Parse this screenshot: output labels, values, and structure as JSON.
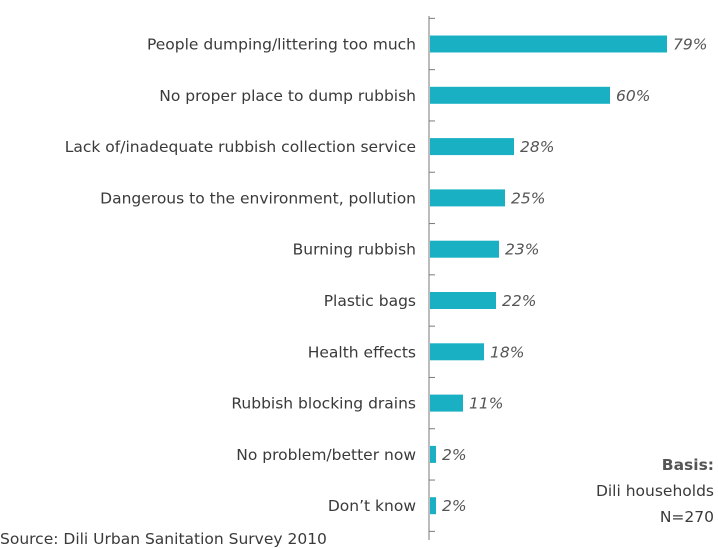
{
  "chart_data": {
    "type": "bar",
    "orientation": "horizontal",
    "categories": [
      "People dumping/littering too much",
      "No proper place to dump rubbish",
      "Lack of/inadequate rubbish collection service",
      "Dangerous to the environment, pollution",
      "Burning rubbish",
      "Plastic bags",
      "Health effects",
      "Rubbish blocking drains",
      "No problem/better now",
      "Don’t know"
    ],
    "values": [
      79,
      60,
      28,
      25,
      23,
      22,
      18,
      11,
      2,
      2
    ],
    "value_labels": [
      "79%",
      "60%",
      "28%",
      "25%",
      "23%",
      "22%",
      "18%",
      "11%",
      "2%",
      "2%"
    ],
    "bar_color": "#1ab0c4",
    "xlim": [
      0,
      100
    ],
    "grid": false,
    "legend": "none"
  },
  "basis": {
    "title": "Basis:",
    "line1": "Dili households",
    "line2": "N=270"
  },
  "source": "Source: Dili Urban Sanitation Survey 2010"
}
